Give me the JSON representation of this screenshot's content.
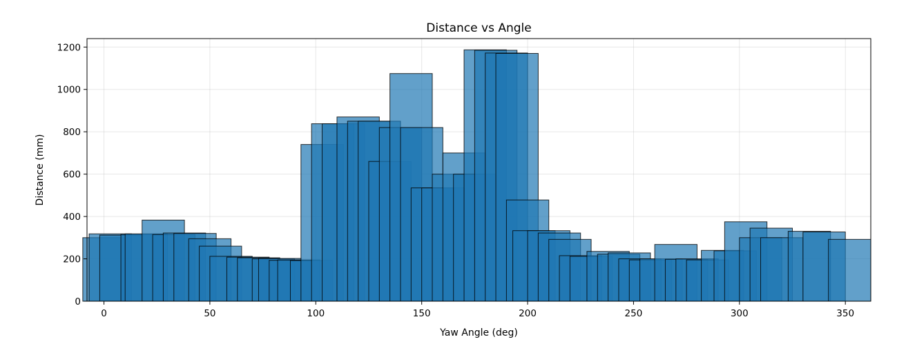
{
  "chart_data": {
    "type": "bar",
    "title": "Distance vs Angle",
    "xlabel": "Yaw Angle (deg)",
    "ylabel": "Distance (mm)",
    "xlim": [
      -8,
      362
    ],
    "ylim": [
      0,
      1240
    ],
    "xticks": [
      0,
      50,
      100,
      150,
      200,
      250,
      300,
      350
    ],
    "yticks": [
      0,
      200,
      400,
      600,
      800,
      1000,
      1200
    ],
    "grid": true,
    "legend": "none",
    "bar_color": "#1f77b4",
    "bar_alpha": 0.7,
    "edge_color": "#000000",
    "bar_width": 20,
    "x": [
      0,
      3,
      8,
      18,
      20,
      28,
      33,
      38,
      43,
      50,
      55,
      60,
      68,
      73,
      80,
      83,
      88,
      92,
      98,
      103,
      108,
      113,
      120,
      125,
      130,
      135,
      140,
      145,
      150,
      155,
      160,
      165,
      170,
      175,
      180,
      185,
      190,
      195,
      200,
      203,
      210,
      215,
      220,
      225,
      230,
      238,
      243,
      248,
      253,
      258,
      263,
      270,
      275,
      280,
      285,
      292,
      298,
      303,
      310,
      315,
      320,
      333,
      340,
      352
    ],
    "values": [
      300,
      318,
      312,
      316,
      318,
      383,
      315,
      322,
      320,
      295,
      260,
      212,
      208,
      205,
      200,
      202,
      193,
      195,
      192,
      740,
      838,
      838,
      870,
      850,
      850,
      660,
      820,
      1075,
      820,
      535,
      535,
      600,
      700,
      600,
      1187,
      1185,
      1172,
      1170,
      478,
      333,
      333,
      322,
      292,
      215,
      212,
      235,
      222,
      228,
      200,
      195,
      200,
      268,
      198,
      200,
      195,
      240,
      238,
      375,
      300,
      345,
      300,
      330,
      327,
      292
    ]
  }
}
